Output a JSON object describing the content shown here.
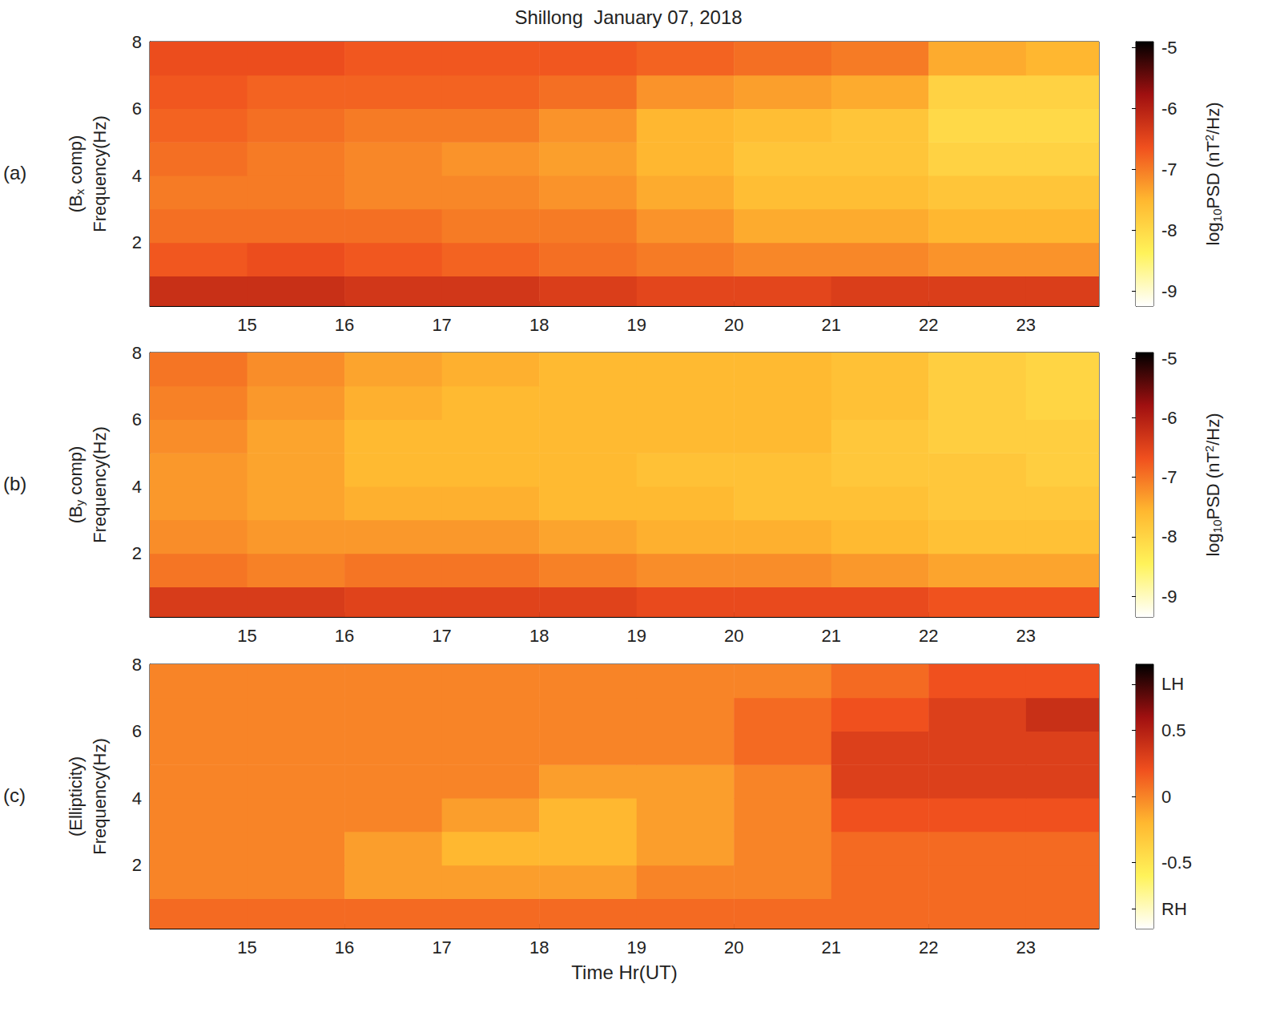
{
  "chart_data": [
    {
      "type": "heatmap",
      "title": "Shillong  January 07, 2018",
      "panel": "(a)",
      "ylabel": [
        "(Bx comp)",
        "Frequency(Hz)"
      ],
      "xlim": [
        14,
        23.75
      ],
      "xticks": [
        15,
        16,
        17,
        18,
        19,
        20,
        21,
        22,
        23
      ],
      "ylim": [
        0.1,
        8
      ],
      "yticks": [
        2,
        4,
        6,
        8
      ],
      "x_edges": [
        14,
        15,
        16,
        17,
        18,
        19,
        20,
        21,
        22,
        23,
        23.75
      ],
      "y_edges": [
        0.1,
        1,
        2,
        3,
        4,
        5,
        6,
        7,
        8
      ],
      "cells": [
        [
          -6.2,
          -6.2,
          -6.3,
          -6.3,
          -6.4,
          -6.5,
          -6.5,
          -6.4,
          -6.4,
          -6.4
        ],
        [
          -6.7,
          -6.6,
          -6.7,
          -6.8,
          -6.9,
          -7.0,
          -7.1,
          -7.1,
          -7.2,
          -7.2
        ],
        [
          -6.9,
          -6.9,
          -6.9,
          -7.0,
          -7.0,
          -7.2,
          -7.4,
          -7.4,
          -7.5,
          -7.5
        ],
        [
          -7.0,
          -7.0,
          -7.1,
          -7.1,
          -7.2,
          -7.4,
          -7.6,
          -7.6,
          -7.7,
          -7.7
        ],
        [
          -6.9,
          -7.0,
          -7.1,
          -7.2,
          -7.3,
          -7.5,
          -7.7,
          -7.7,
          -7.9,
          -7.9
        ],
        [
          -6.8,
          -6.9,
          -7.0,
          -7.0,
          -7.2,
          -7.5,
          -7.6,
          -7.7,
          -8.0,
          -8.0
        ],
        [
          -6.7,
          -6.8,
          -6.8,
          -6.8,
          -6.9,
          -7.2,
          -7.3,
          -7.4,
          -7.9,
          -7.9
        ],
        [
          -6.6,
          -6.6,
          -6.7,
          -6.7,
          -6.7,
          -6.8,
          -6.9,
          -7.0,
          -7.4,
          -7.5
        ]
      ],
      "colorbar": {
        "label": "log10PSD (nT2/Hz)",
        "lim": [
          -9.25,
          -4.9
        ],
        "ticks": [
          -9,
          -8,
          -7,
          -6,
          -5
        ]
      }
    },
    {
      "type": "heatmap",
      "panel": "(b)",
      "ylabel": [
        "(By comp)",
        "Frequency(Hz)"
      ],
      "xlim": [
        14,
        23.75
      ],
      "xticks": [
        15,
        16,
        17,
        18,
        19,
        20,
        21,
        22,
        23
      ],
      "ylim": [
        0.1,
        8
      ],
      "yticks": [
        2,
        4,
        6,
        8
      ],
      "x_edges": [
        14,
        15,
        16,
        17,
        18,
        19,
        20,
        21,
        22,
        23,
        23.75
      ],
      "y_edges": [
        0.1,
        1,
        2,
        3,
        4,
        5,
        6,
        7,
        8
      ],
      "cells": [
        [
          -6.4,
          -6.4,
          -6.5,
          -6.5,
          -6.5,
          -6.6,
          -6.6,
          -6.6,
          -6.7,
          -6.7
        ],
        [
          -7.0,
          -7.1,
          -7.0,
          -7.0,
          -7.1,
          -7.2,
          -7.2,
          -7.3,
          -7.4,
          -7.4
        ],
        [
          -7.2,
          -7.3,
          -7.3,
          -7.3,
          -7.4,
          -7.5,
          -7.5,
          -7.6,
          -7.7,
          -7.7
        ],
        [
          -7.3,
          -7.4,
          -7.5,
          -7.5,
          -7.6,
          -7.6,
          -7.7,
          -7.7,
          -7.8,
          -7.8
        ],
        [
          -7.3,
          -7.4,
          -7.6,
          -7.6,
          -7.6,
          -7.7,
          -7.7,
          -7.8,
          -7.8,
          -7.9
        ],
        [
          -7.2,
          -7.4,
          -7.6,
          -7.6,
          -7.6,
          -7.6,
          -7.6,
          -7.8,
          -7.9,
          -7.9
        ],
        [
          -7.1,
          -7.3,
          -7.5,
          -7.6,
          -7.6,
          -7.6,
          -7.6,
          -7.7,
          -7.9,
          -8.0
        ],
        [
          -7.0,
          -7.2,
          -7.4,
          -7.5,
          -7.6,
          -7.6,
          -7.6,
          -7.7,
          -7.9,
          -8.0
        ]
      ],
      "colorbar": {
        "label": "log10PSD (nT2/Hz)",
        "lim": [
          -9.35,
          -4.9
        ],
        "ticks": [
          -9,
          -8,
          -7,
          -6,
          -5
        ]
      }
    },
    {
      "type": "heatmap",
      "panel": "(c)",
      "ylabel": [
        "(Ellipticity)",
        "Frequency(Hz)"
      ],
      "xlabel": "Time Hr(UT)",
      "xlim": [
        14,
        23.75
      ],
      "xticks": [
        15,
        16,
        17,
        18,
        19,
        20,
        21,
        22,
        23
      ],
      "ylim": [
        0.1,
        8
      ],
      "yticks": [
        2,
        4,
        6,
        8
      ],
      "x_edges": [
        14,
        15,
        16,
        17,
        18,
        19,
        20,
        21,
        22,
        23,
        23.75
      ],
      "y_edges": [
        0.1,
        1,
        2,
        3,
        4,
        5,
        6,
        7,
        8
      ],
      "cells": [
        [
          0.1,
          0.1,
          0.1,
          0.1,
          0.1,
          0.1,
          0.1,
          0.1,
          0.1,
          0.1
        ],
        [
          0,
          0,
          -0.1,
          -0.1,
          -0.1,
          0,
          0,
          0.1,
          0.1,
          0.1
        ],
        [
          0,
          0,
          -0.1,
          -0.2,
          -0.2,
          -0.1,
          0,
          0.1,
          0.1,
          0.1
        ],
        [
          0,
          0,
          0,
          -0.1,
          -0.2,
          -0.1,
          0,
          0.2,
          0.2,
          0.2
        ],
        [
          0,
          0,
          0,
          0,
          -0.1,
          -0.1,
          0,
          0.3,
          0.3,
          0.3
        ],
        [
          0,
          0,
          0,
          0,
          0,
          0,
          0.1,
          0.3,
          0.3,
          0.3
        ],
        [
          0,
          0,
          0,
          0,
          0,
          0,
          0.1,
          0.2,
          0.3,
          0.4
        ],
        [
          0,
          0,
          0,
          0,
          0,
          0,
          0,
          0.1,
          0.2,
          0.2
        ]
      ],
      "colorbar": {
        "lim": [
          -1,
          1
        ],
        "ticks": [
          {
            "value": -0.85,
            "label": "RH"
          },
          -0.5,
          0,
          0.5,
          {
            "value": 0.85,
            "label": "LH"
          }
        ]
      }
    }
  ]
}
